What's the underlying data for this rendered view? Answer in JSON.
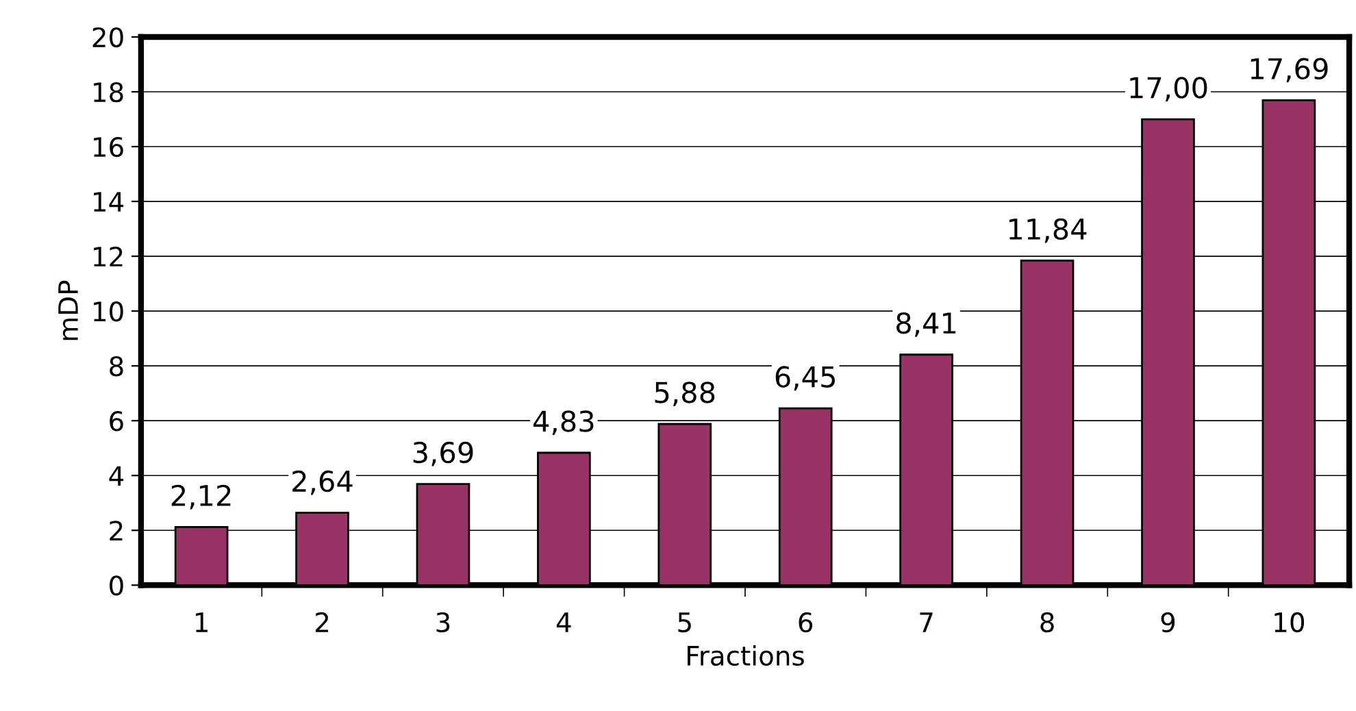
{
  "chart_data": {
    "type": "bar",
    "xlabel": "Fractions",
    "ylabel": "mDP",
    "categories": [
      "1",
      "2",
      "3",
      "4",
      "5",
      "6",
      "7",
      "8",
      "9",
      "10"
    ],
    "values": [
      2.12,
      2.64,
      3.69,
      4.83,
      5.88,
      6.45,
      8.41,
      11.84,
      17.0,
      17.69
    ],
    "value_labels": [
      "2,12",
      "2,64",
      "3,69",
      "4,83",
      "5,88",
      "6,45",
      "8,41",
      "11,84",
      "17,00",
      "17,69"
    ],
    "color": "#993366",
    "ylim": [
      0,
      20
    ],
    "yticks": [
      0,
      2,
      4,
      6,
      8,
      10,
      12,
      14,
      16,
      18,
      20
    ],
    "grid": "y"
  }
}
